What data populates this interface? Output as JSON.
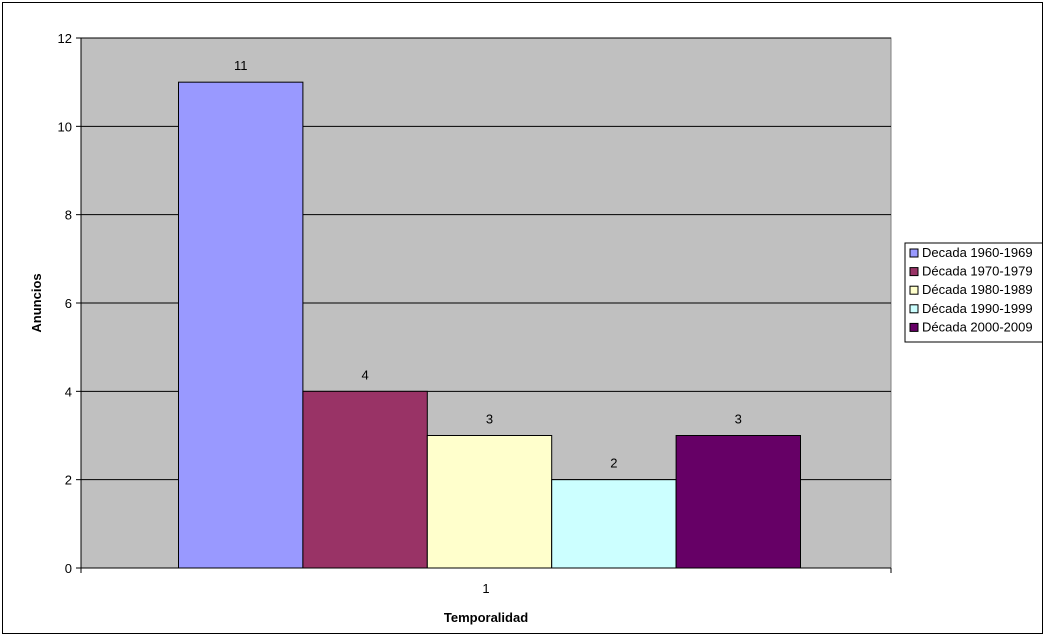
{
  "chart_data": {
    "type": "bar",
    "categories": [
      "1"
    ],
    "series": [
      {
        "name": "Decada 1960-1969",
        "values": [
          11
        ],
        "color": "#9999FF"
      },
      {
        "name": "Década 1970-1979",
        "values": [
          4
        ],
        "color": "#993366"
      },
      {
        "name": "Década 1980-1989",
        "values": [
          3
        ],
        "color": "#FFFFCC"
      },
      {
        "name": "Década 1990-1999",
        "values": [
          2
        ],
        "color": "#CCFFFF"
      },
      {
        "name": "Década 2000-2009",
        "values": [
          3
        ],
        "color": "#660066"
      }
    ],
    "xlabel": "Temporalidad",
    "ylabel": "Anuncios",
    "ylim": [
      0,
      12
    ],
    "yticks": [
      "0",
      "2",
      "4",
      "6",
      "8",
      "10",
      "12"
    ],
    "grid": true,
    "plot_background": "#C0C0C0",
    "legend_position": "right",
    "data_labels": true
  }
}
